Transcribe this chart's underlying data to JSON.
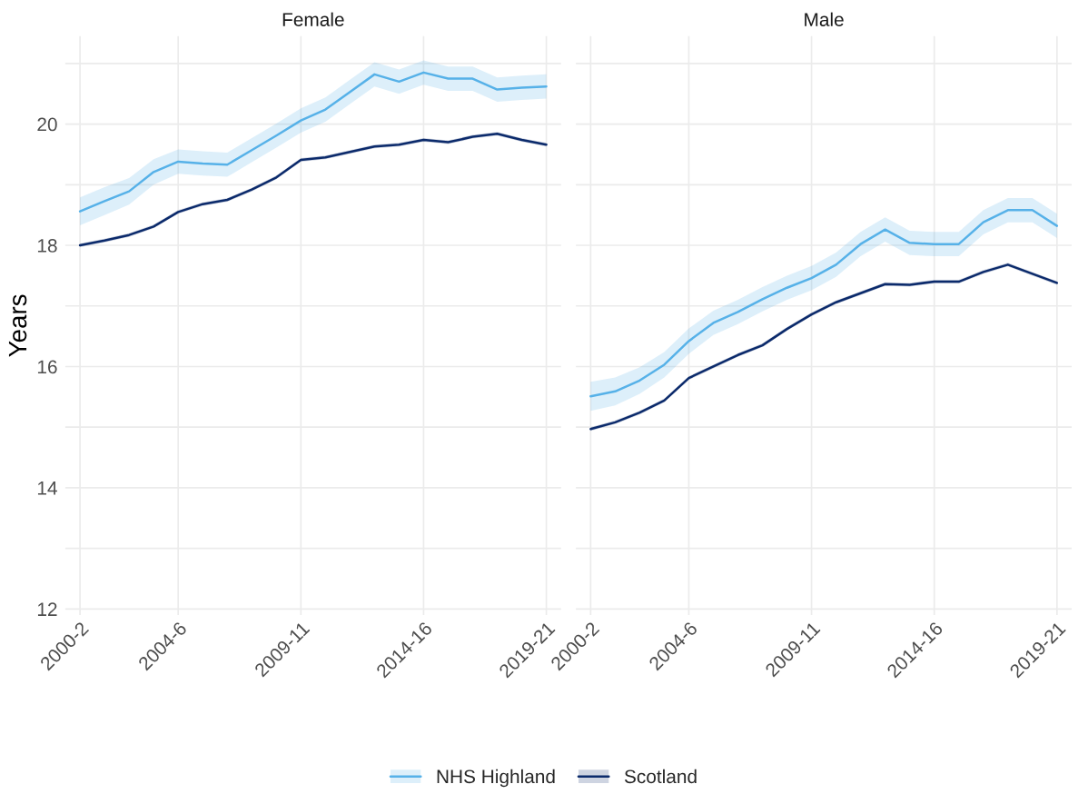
{
  "chart_data": [
    {
      "type": "line",
      "title": "Female",
      "ylabel": "Years",
      "categories": [
        "2000-2",
        null,
        null,
        null,
        "2004-6",
        null,
        null,
        null,
        null,
        "2009-11",
        null,
        null,
        null,
        null,
        "2014-16",
        null,
        null,
        null,
        null,
        "2019-21"
      ],
      "ylim": [
        11.9,
        21.45
      ],
      "yticks": [
        12,
        {
          "value": 13,
          "label": null
        },
        14,
        {
          "value": 15,
          "label": null
        },
        16,
        {
          "value": 17,
          "label": null
        },
        18,
        {
          "value": 19,
          "label": null
        },
        20,
        {
          "value": 21,
          "label": null
        }
      ],
      "grid": true,
      "legend": "bottom",
      "line_style": "solid",
      "marker": "none",
      "series": [
        {
          "name": "NHS Highland",
          "color": "#56b1e8",
          "values": [
            18.56,
            18.73,
            18.89,
            19.21,
            19.38,
            19.35,
            19.33,
            19.57,
            19.81,
            20.06,
            20.24,
            20.53,
            20.82,
            20.7,
            20.85,
            20.75,
            20.75,
            20.57,
            20.6,
            20.62
          ],
          "lower": [
            18.33,
            18.5,
            18.67,
            19.0,
            19.18,
            19.15,
            19.13,
            19.37,
            19.61,
            19.86,
            20.04,
            20.33,
            20.62,
            20.5,
            20.65,
            20.55,
            20.55,
            20.37,
            20.4,
            20.42
          ],
          "upper": [
            18.79,
            18.96,
            19.11,
            19.42,
            19.58,
            19.55,
            19.53,
            19.77,
            20.01,
            20.26,
            20.44,
            20.73,
            21.02,
            20.9,
            21.05,
            20.95,
            20.95,
            20.77,
            20.8,
            20.82
          ]
        },
        {
          "name": "Scotland",
          "color": "#0b2a6b",
          "values": [
            18.0,
            18.08,
            18.17,
            18.31,
            18.55,
            18.68,
            18.75,
            18.92,
            19.12,
            19.41,
            19.45,
            19.54,
            19.63,
            19.66,
            19.74,
            19.7,
            19.79,
            19.84,
            19.74,
            19.66
          ],
          "lower": [
            17.97,
            18.05,
            18.14,
            18.28,
            18.52,
            18.65,
            18.72,
            18.89,
            19.09,
            19.38,
            19.42,
            19.51,
            19.6,
            19.63,
            19.71,
            19.67,
            19.76,
            19.81,
            19.71,
            19.63
          ],
          "upper": [
            18.03,
            18.11,
            18.2,
            18.34,
            18.58,
            18.71,
            18.78,
            18.95,
            19.15,
            19.44,
            19.48,
            19.57,
            19.66,
            19.69,
            19.77,
            19.73,
            19.82,
            19.87,
            19.77,
            19.69
          ]
        }
      ]
    },
    {
      "type": "line",
      "title": "Male",
      "tick_labels": "x",
      "categories": [
        "2000-2",
        null,
        null,
        null,
        "2004-6",
        null,
        null,
        null,
        null,
        "2009-11",
        null,
        null,
        null,
        null,
        "2014-16",
        null,
        null,
        null,
        null,
        "2019-21"
      ],
      "ylim": [
        11.9,
        21.45
      ],
      "yticks": [
        12,
        {
          "value": 13,
          "label": null
        },
        14,
        {
          "value": 15,
          "label": null
        },
        16,
        {
          "value": 17,
          "label": null
        },
        18,
        {
          "value": 19,
          "label": null
        },
        20,
        {
          "value": 21,
          "label": null
        }
      ],
      "grid": true,
      "line_style": "solid",
      "marker": "none",
      "series": [
        {
          "name": "NHS Highland",
          "color": "#56b1e8",
          "values": [
            15.51,
            15.59,
            15.77,
            16.03,
            16.42,
            16.72,
            16.9,
            17.11,
            17.3,
            17.46,
            17.68,
            18.02,
            18.26,
            18.04,
            18.02,
            18.02,
            18.38,
            18.58,
            18.58,
            18.32
          ],
          "lower": [
            15.27,
            15.36,
            15.55,
            15.82,
            16.21,
            16.52,
            16.7,
            16.91,
            17.1,
            17.26,
            17.48,
            17.82,
            18.06,
            17.84,
            17.82,
            17.82,
            18.18,
            18.38,
            18.38,
            18.12
          ],
          "upper": [
            15.75,
            15.82,
            15.99,
            16.24,
            16.63,
            16.92,
            17.1,
            17.31,
            17.5,
            17.66,
            17.88,
            18.22,
            18.46,
            18.24,
            18.22,
            18.22,
            18.58,
            18.78,
            18.78,
            18.52
          ]
        },
        {
          "name": "Scotland",
          "color": "#0b2a6b",
          "values": [
            14.97,
            15.08,
            15.24,
            15.44,
            15.81,
            16.0,
            16.19,
            16.35,
            16.62,
            16.86,
            17.06,
            17.21,
            17.36,
            17.35,
            17.4,
            17.4,
            17.56,
            17.68,
            17.53,
            17.38
          ],
          "lower": [
            14.94,
            15.05,
            15.21,
            15.41,
            15.78,
            15.97,
            16.16,
            16.32,
            16.59,
            16.83,
            17.03,
            17.18,
            17.33,
            17.32,
            17.37,
            17.37,
            17.53,
            17.65,
            17.5,
            17.35
          ],
          "upper": [
            15.0,
            15.11,
            15.27,
            15.47,
            15.84,
            16.03,
            16.22,
            16.38,
            16.65,
            16.89,
            17.09,
            17.24,
            17.39,
            17.38,
            17.43,
            17.43,
            17.59,
            17.71,
            17.56,
            17.41
          ]
        }
      ]
    }
  ]
}
